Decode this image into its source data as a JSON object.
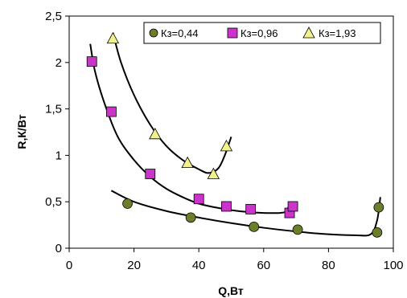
{
  "chart_data": {
    "type": "scatter",
    "xlabel": "Q,Вт",
    "ylabel": "R,К/Вт",
    "xlim": [
      0,
      100
    ],
    "ylim": [
      0,
      2.5
    ],
    "x_ticks": [
      "0",
      "20",
      "40",
      "60",
      "80",
      "100"
    ],
    "y_ticks": [
      "0",
      "0,5",
      "1",
      "1,5",
      "2",
      "2,5"
    ],
    "grid": "none",
    "legend_position": "top",
    "series": [
      {
        "name": "Кз=0,44",
        "marker": "circle",
        "color": "#6b7f2a",
        "points": [
          [
            18,
            0.48
          ],
          [
            37.5,
            0.33
          ],
          [
            57,
            0.23
          ],
          [
            70.5,
            0.2
          ],
          [
            95,
            0.17
          ],
          [
            95.5,
            0.44
          ]
        ],
        "trend": [
          [
            13,
            0.62
          ],
          [
            20,
            0.5
          ],
          [
            30,
            0.4
          ],
          [
            40,
            0.33
          ],
          [
            50,
            0.27
          ],
          [
            60,
            0.22
          ],
          [
            70,
            0.18
          ],
          [
            80,
            0.15
          ],
          [
            88,
            0.14
          ],
          [
            93,
            0.15
          ],
          [
            95,
            0.3
          ],
          [
            96,
            0.55
          ]
        ]
      },
      {
        "name": "Кз=0,96",
        "marker": "square",
        "color": "#cc33cc",
        "points": [
          [
            7,
            2.01
          ],
          [
            13,
            1.47
          ],
          [
            25,
            0.8
          ],
          [
            40,
            0.53
          ],
          [
            48.5,
            0.45
          ],
          [
            56,
            0.42
          ],
          [
            68,
            0.38
          ],
          [
            69,
            0.45
          ]
        ],
        "trend": [
          [
            6.5,
            2.2
          ],
          [
            8,
            1.9
          ],
          [
            11,
            1.55
          ],
          [
            15,
            1.2
          ],
          [
            20,
            0.95
          ],
          [
            25,
            0.77
          ],
          [
            30,
            0.64
          ],
          [
            35,
            0.55
          ],
          [
            40,
            0.48
          ],
          [
            45,
            0.44
          ],
          [
            50,
            0.41
          ],
          [
            55,
            0.39
          ],
          [
            60,
            0.38
          ],
          [
            65,
            0.38
          ],
          [
            67,
            0.4
          ],
          [
            68,
            0.48
          ]
        ]
      },
      {
        "name": "Кз=1,93",
        "marker": "triangle",
        "color": "#f2f28c",
        "points": [
          [
            13.5,
            2.26
          ],
          [
            26.5,
            1.23
          ],
          [
            36.5,
            0.92
          ],
          [
            44.5,
            0.8
          ],
          [
            48.5,
            1.1
          ]
        ],
        "trend": [
          [
            13.5,
            2.32
          ],
          [
            16,
            2.0
          ],
          [
            20,
            1.65
          ],
          [
            25,
            1.33
          ],
          [
            30,
            1.1
          ],
          [
            35,
            0.95
          ],
          [
            40,
            0.85
          ],
          [
            43,
            0.81
          ],
          [
            46,
            0.86
          ],
          [
            48,
            1.0
          ],
          [
            50,
            1.2
          ]
        ]
      }
    ]
  }
}
